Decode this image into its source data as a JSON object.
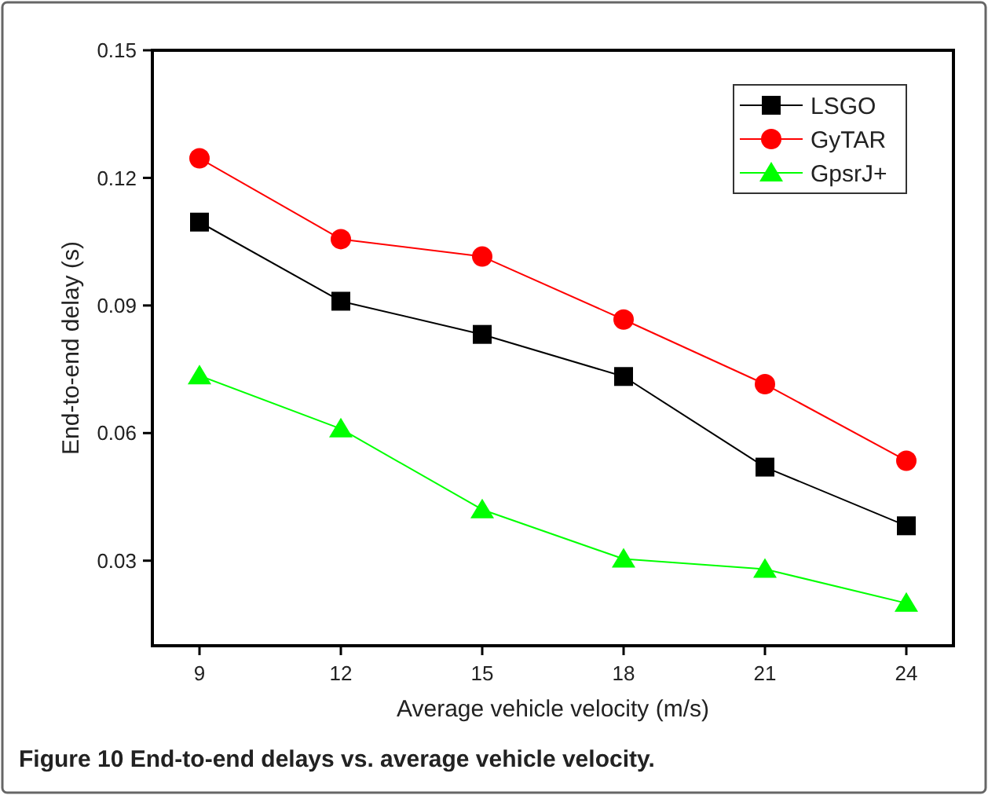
{
  "chart_data": {
    "type": "line",
    "xlabel": "Average vehicle velocity (m/s)",
    "ylabel": "End-to-end delay (s)",
    "x": [
      9,
      12,
      15,
      18,
      21,
      24
    ],
    "series": [
      {
        "name": "LSGO",
        "color": "#000000",
        "marker": "square",
        "values": [
          0.1096,
          0.091,
          0.0832,
          0.0733,
          0.052,
          0.0382
        ]
      },
      {
        "name": "GyTAR",
        "color": "#ff0000",
        "marker": "circle",
        "values": [
          0.1246,
          0.1056,
          0.1015,
          0.0867,
          0.0715,
          0.0535
        ]
      },
      {
        "name": "GpsrJ+",
        "color": "#00ff00",
        "marker": "triangle",
        "values": [
          0.0735,
          0.061,
          0.042,
          0.0304,
          0.028,
          0.02
        ]
      }
    ],
    "xlim": [
      8,
      25
    ],
    "xticks": [
      9,
      12,
      15,
      18,
      21,
      24
    ],
    "ylim": [
      0.01,
      0.15
    ],
    "yticks": [
      {
        "value": 0.03,
        "label": "0.03"
      },
      {
        "value": 0.06,
        "label": "0.06"
      },
      {
        "value": 0.09,
        "label": "0.09"
      },
      {
        "value": 0.12,
        "label": "0.12"
      },
      {
        "value": 0.15,
        "label": "0.15"
      }
    ],
    "legend": "top right",
    "grid": false,
    "annotations": [
      "Figure 10 End-to-end delays vs. average vehicle velocity."
    ]
  }
}
